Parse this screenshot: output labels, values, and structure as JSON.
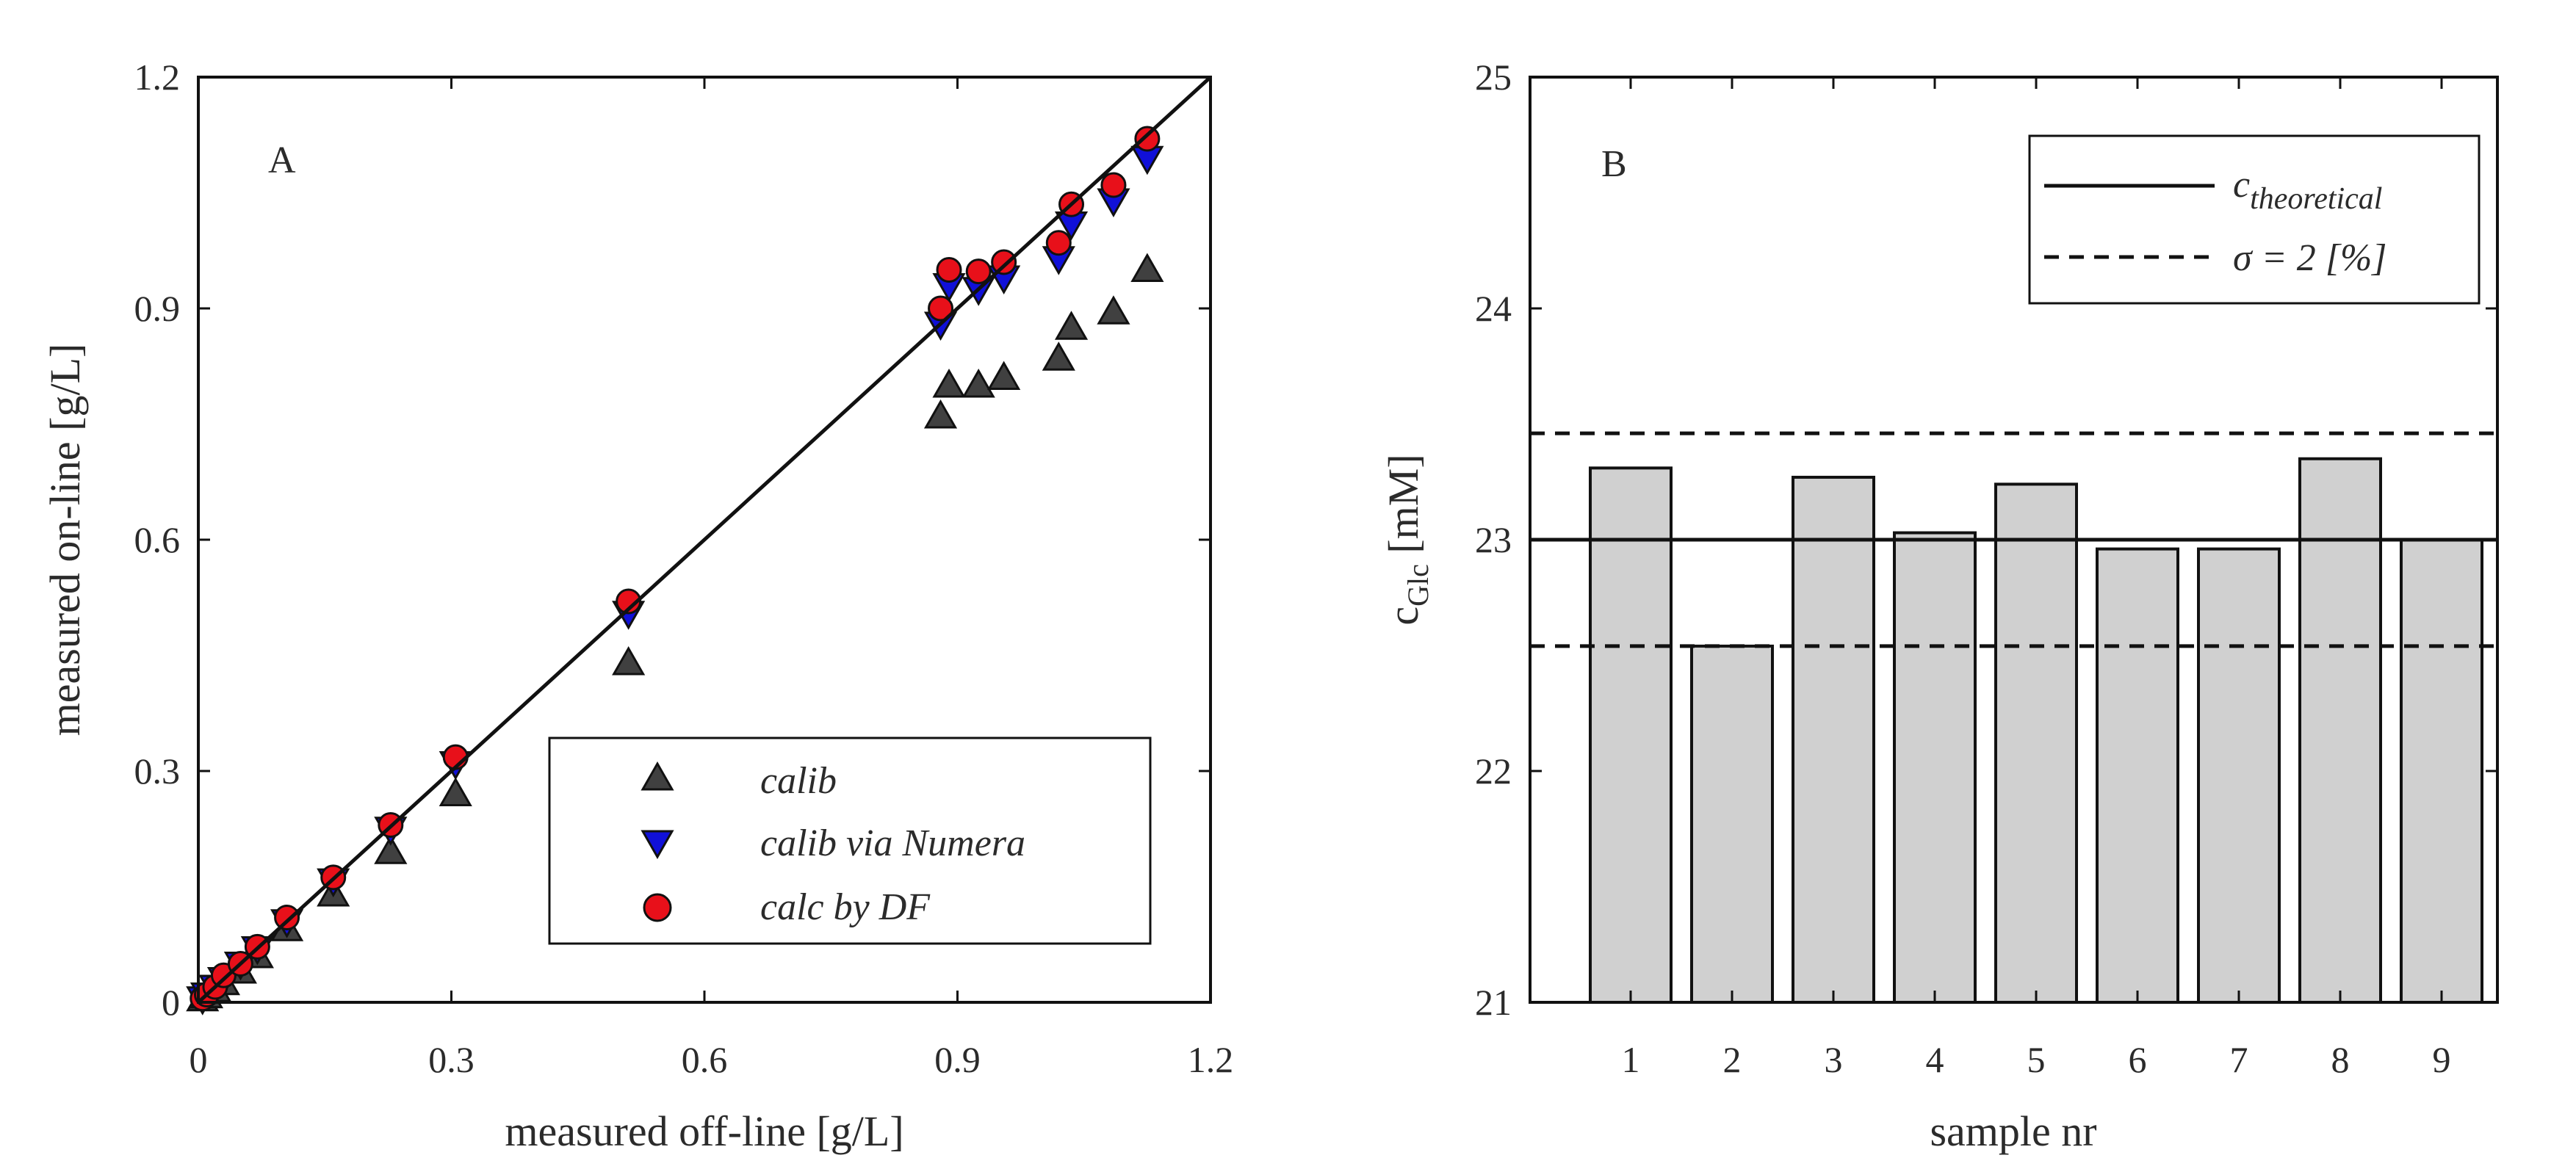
{
  "chart_data": [
    {
      "panel": "A",
      "type": "scatter",
      "panel_label": "A",
      "xlabel": "measured off-line  [g/L]",
      "ylabel": "measured on-line [g/L]",
      "xlim": [
        0,
        1.2
      ],
      "ylim": [
        0,
        1.2
      ],
      "xticks": [
        0,
        0.3,
        0.6,
        0.9,
        1.2
      ],
      "yticks": [
        0,
        0.3,
        0.6,
        0.9,
        1.2
      ],
      "xtick_labels": [
        "0",
        "0.3",
        "0.6",
        "0.9",
        "1.2"
      ],
      "ytick_labels": [
        "0",
        "0.3",
        "0.6",
        "0.9",
        "1.2"
      ],
      "reference_line": {
        "from": [
          0,
          0
        ],
        "to": [
          1.2,
          1.2
        ]
      },
      "legend_position": "bottom-right",
      "series": [
        {
          "name": "calib",
          "marker": "triangle-up",
          "color": "#404040",
          "x": [
            0.005,
            0.01,
            0.02,
            0.03,
            0.05,
            0.07,
            0.105,
            0.16,
            0.228,
            0.305,
            0.51,
            0.88,
            0.89,
            0.925,
            0.955,
            1.02,
            1.035,
            1.085,
            1.125
          ],
          "y": [
            0.004,
            0.008,
            0.016,
            0.025,
            0.04,
            0.06,
            0.095,
            0.14,
            0.195,
            0.27,
            0.44,
            0.76,
            0.8,
            0.8,
            0.81,
            0.835,
            0.875,
            0.895,
            0.95
          ]
        },
        {
          "name": "calib via Numera",
          "marker": "triangle-down",
          "color": "#1010d8",
          "x": [
            0.005,
            0.01,
            0.02,
            0.03,
            0.05,
            0.07,
            0.105,
            0.16,
            0.228,
            0.305,
            0.51,
            0.88,
            0.89,
            0.925,
            0.955,
            1.02,
            1.035,
            1.085,
            1.125
          ],
          "y": [
            0.005,
            0.01,
            0.02,
            0.03,
            0.05,
            0.07,
            0.105,
            0.158,
            0.225,
            0.31,
            0.505,
            0.88,
            0.93,
            0.925,
            0.94,
            0.965,
            1.01,
            1.04,
            1.095
          ]
        },
        {
          "name": "calc by DF",
          "marker": "circle",
          "color": "#e8101a",
          "x": [
            0.005,
            0.01,
            0.02,
            0.03,
            0.05,
            0.07,
            0.105,
            0.16,
            0.228,
            0.305,
            0.51,
            0.88,
            0.89,
            0.925,
            0.955,
            1.02,
            1.035,
            1.085,
            1.125
          ],
          "y": [
            0.005,
            0.01,
            0.02,
            0.035,
            0.05,
            0.072,
            0.11,
            0.162,
            0.23,
            0.318,
            0.52,
            0.9,
            0.95,
            0.948,
            0.96,
            0.985,
            1.035,
            1.06,
            1.12
          ]
        }
      ]
    },
    {
      "panel": "B",
      "type": "bar",
      "panel_label": "B",
      "xlabel": "sample nr",
      "ylabel_main": "c",
      "ylabel_sub": "Glc",
      "ylabel_unit": " [mM]",
      "ylim": [
        21,
        25
      ],
      "yticks": [
        21,
        22,
        23,
        24,
        25
      ],
      "ytick_labels": [
        "21",
        "22",
        "23",
        "24",
        "25"
      ],
      "categories": [
        "1",
        "2",
        "3",
        "4",
        "5",
        "6",
        "7",
        "8",
        "9"
      ],
      "values": [
        23.31,
        22.54,
        23.27,
        23.03,
        23.24,
        22.96,
        22.96,
        23.35,
        23.0
      ],
      "bar_color": "#d0d0d0",
      "reference_lines": [
        {
          "name": "c_theoretical",
          "value": 23.0,
          "style": "solid"
        },
        {
          "name": "upper_sigma",
          "value": 23.46,
          "style": "dashed"
        },
        {
          "name": "lower_sigma",
          "value": 22.54,
          "style": "dashed"
        }
      ],
      "legend_position": "top-right",
      "legend": [
        {
          "style": "solid",
          "main": "c",
          "sub": "theoretical"
        },
        {
          "style": "dashed",
          "text": "σ = 2 [%]"
        }
      ]
    }
  ]
}
